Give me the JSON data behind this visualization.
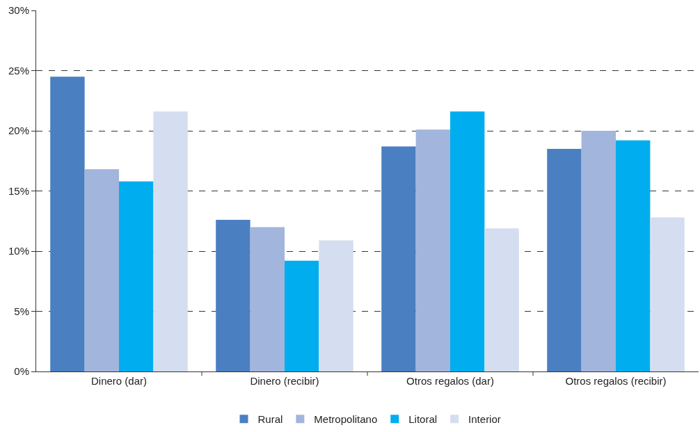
{
  "chart_data": {
    "type": "bar",
    "categories": [
      "Dinero (dar)",
      "Dinero (recibir)",
      "Otros regalos (dar)",
      "Otros regalos (recibir)"
    ],
    "series": [
      {
        "name": "Rural",
        "color": "#4a7fc1",
        "values": [
          24.5,
          12.6,
          18.7,
          18.5
        ]
      },
      {
        "name": "Metropolitano",
        "color": "#a2b5dc",
        "values": [
          16.8,
          12.0,
          20.1,
          20.0
        ]
      },
      {
        "name": "Litoral",
        "color": "#00aeef",
        "values": [
          15.8,
          9.2,
          21.6,
          19.2
        ]
      },
      {
        "name": "Interior",
        "color": "#d5def0",
        "values": [
          21.6,
          10.9,
          11.9,
          12.8
        ]
      }
    ],
    "ylim": [
      0,
      30
    ],
    "yticks": [
      {
        "value": 0,
        "label": "0%"
      },
      {
        "value": 5,
        "label": "5%"
      },
      {
        "value": 10,
        "label": "10%"
      },
      {
        "value": 15,
        "label": "15%"
      },
      {
        "value": 20,
        "label": "20%"
      },
      {
        "value": 25,
        "label": "25%"
      },
      {
        "value": 30,
        "label": "30%"
      }
    ],
    "grid": "y",
    "legend": "bottom"
  }
}
